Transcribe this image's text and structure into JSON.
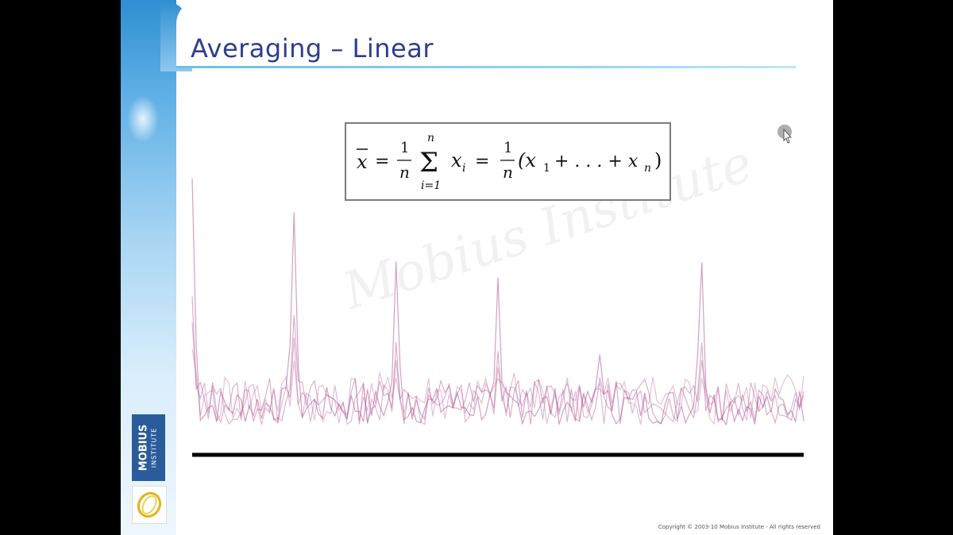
{
  "slide": {
    "title": "Averaging – Linear",
    "copyright": "Copyright © 2003-10 Mobius Institute - All rights reserved"
  },
  "logo": {
    "name": "MOBIUS",
    "subtitle": "INSTITUTE"
  },
  "watermark": {
    "line1": "Mobius",
    "line2": "Institute"
  },
  "formula": {
    "lhs": "x",
    "one": "1",
    "n": "n",
    "sum_upper": "n",
    "sum_lower": "i=1",
    "term": "x",
    "term_sub": "i",
    "rhs_body": "(x",
    "rhs_sub1": "1",
    "rhs_mid": "+ . . . + x",
    "rhs_subn": "n",
    "rhs_close": ")"
  },
  "colors": {
    "title": "#2c3f8f",
    "trace": "#b0508f",
    "baseline": "#000000"
  }
}
